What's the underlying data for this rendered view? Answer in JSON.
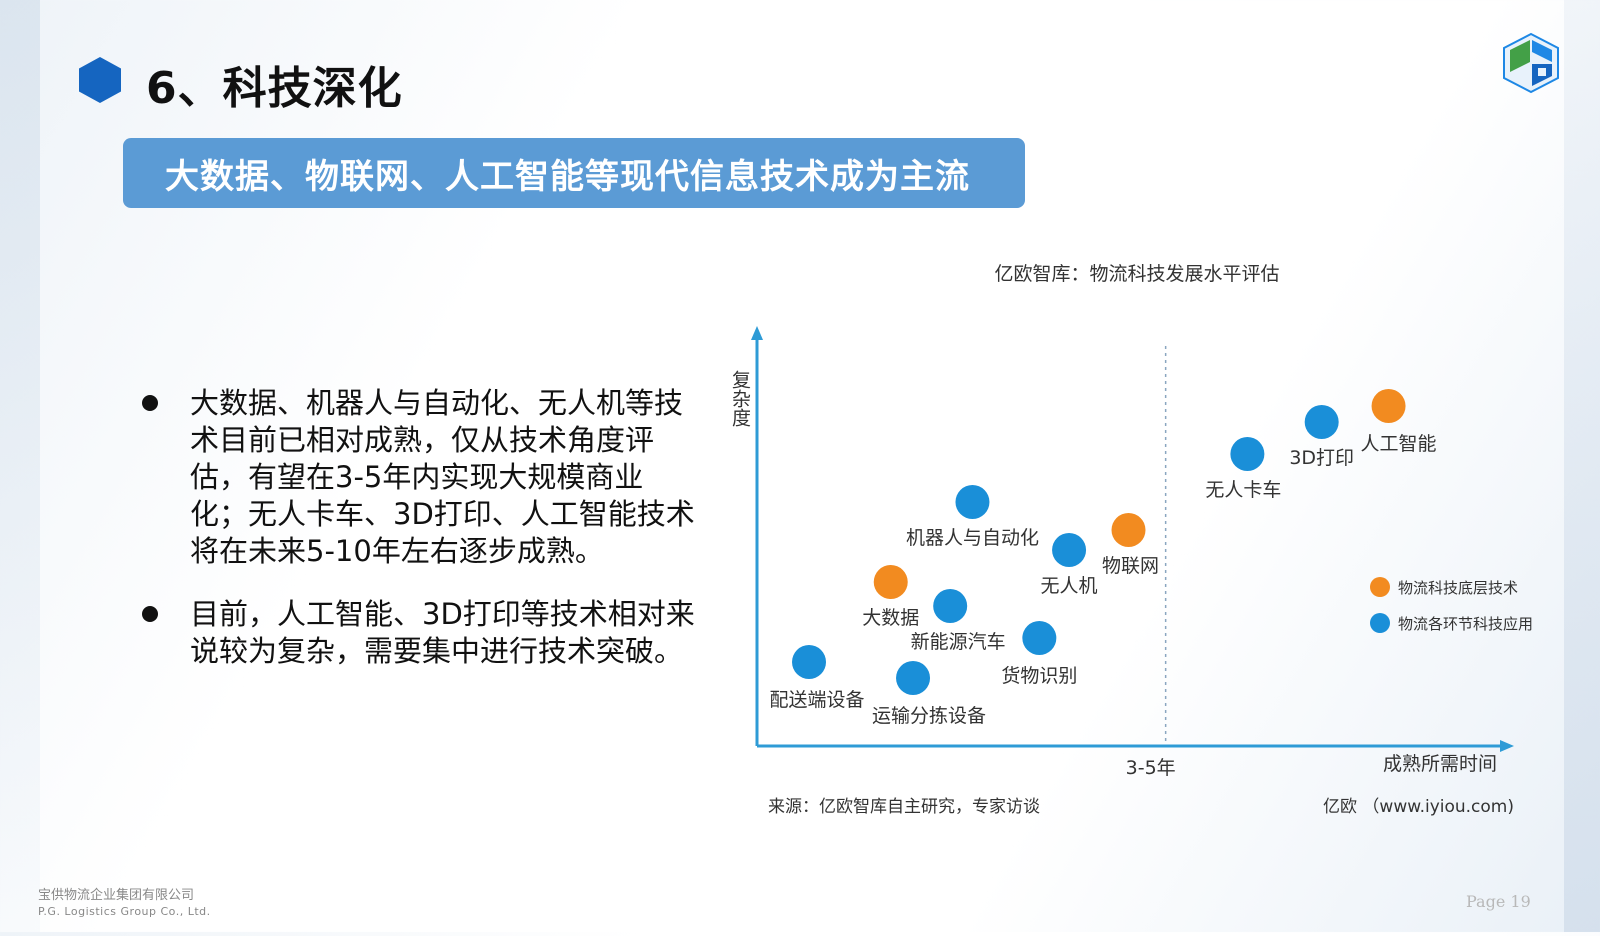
{
  "header": {
    "title": "6、科技深化",
    "banner": "大数据、物联网、人工智能等现代信息技术成为主流"
  },
  "bullets": [
    "大数据、机器人与自动化、无人机等技术目前已相对成熟，仅从技术角度评估，有望在3-5年内实现大规模商业化；无人卡车、3D打印、人工智能技术将在未来5-10年左右逐步成熟。",
    "目前，人工智能、3D打印等技术相对来说较为复杂，需要集中进行技术突破。"
  ],
  "colors": {
    "banner": "#5b9bd5",
    "hex": "#1565c0",
    "orange": "#f28b20",
    "blue": "#1a8fd8"
  },
  "chart_data": {
    "type": "scatter",
    "title": "亿欧智库：物流科技发展水平评估",
    "ylabel": "复杂度",
    "xlabel": "成熟所需时间",
    "xtick": "3-5年",
    "source": "来源：亿欧智库自主研究，专家访谈",
    "credit": "亿欧 （www.iyiou.com)",
    "xlim": [
      0,
      100
    ],
    "ylim": [
      0,
      100
    ],
    "divider_x": 55,
    "legend": [
      {
        "label": "物流科技底层技术",
        "color": "#f28b20"
      },
      {
        "label": "物流各环节科技应用",
        "color": "#1a8fd8"
      }
    ],
    "points": [
      {
        "label": "配送端设备",
        "x": 7,
        "y": 21,
        "color": "#1a8fd8"
      },
      {
        "label": "运输分拣设备",
        "x": 21,
        "y": 17,
        "color": "#1a8fd8"
      },
      {
        "label": "大数据",
        "x": 18,
        "y": 41,
        "color": "#f28b20"
      },
      {
        "label": "新能源汽车",
        "x": 26,
        "y": 35,
        "color": "#1a8fd8"
      },
      {
        "label": "机器人与自动化",
        "x": 29,
        "y": 61,
        "color": "#1a8fd8"
      },
      {
        "label": "货物识别",
        "x": 38,
        "y": 27,
        "color": "#1a8fd8"
      },
      {
        "label": "无人机",
        "x": 42,
        "y": 49,
        "color": "#1a8fd8"
      },
      {
        "label": "物联网",
        "x": 50,
        "y": 54,
        "color": "#f28b20"
      },
      {
        "label": "无人卡车",
        "x": 66,
        "y": 73,
        "color": "#1a8fd8"
      },
      {
        "label": "3D打印",
        "x": 76,
        "y": 81,
        "color": "#1a8fd8"
      },
      {
        "label": "人工智能",
        "x": 85,
        "y": 85,
        "color": "#f28b20"
      }
    ]
  },
  "footer": {
    "company_cn": "宝供物流企业集团有限公司",
    "company_en": "P.G. Logistics Group Co., Ltd.",
    "page": "Page 19"
  }
}
